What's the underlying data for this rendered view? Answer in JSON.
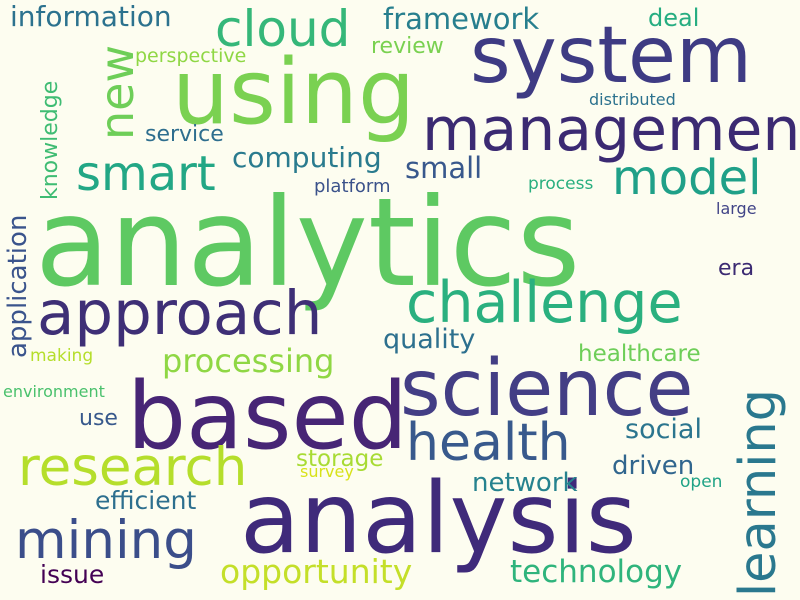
{
  "words": [
    {
      "text": "analytics",
      "color": "#5ec962"
    },
    {
      "text": "analysis",
      "color": "#3f2a7a"
    },
    {
      "text": "based",
      "color": "#472575"
    },
    {
      "text": "science",
      "color": "#433e85"
    },
    {
      "text": "system",
      "color": "#3e3b83"
    },
    {
      "text": "using",
      "color": "#7ad151"
    },
    {
      "text": "management",
      "color": "#3b2a72"
    },
    {
      "text": "approach",
      "color": "#3e2f76"
    },
    {
      "text": "challenge",
      "color": "#2ab07f"
    },
    {
      "text": "research",
      "color": "#b5de2b"
    },
    {
      "text": "mining",
      "color": "#3b4e8a"
    },
    {
      "text": "health",
      "color": "#38598c"
    },
    {
      "text": "cloud",
      "color": "#35b779"
    },
    {
      "text": "smart",
      "color": "#22a785"
    },
    {
      "text": "model",
      "color": "#1fa088"
    },
    {
      "text": "opportunity",
      "color": "#c4df29"
    },
    {
      "text": "technology",
      "color": "#2fb47c"
    },
    {
      "text": "learning",
      "color": "#2a788e"
    },
    {
      "text": "new",
      "color": "#6ece58"
    },
    {
      "text": "processing",
      "color": "#8fd744"
    },
    {
      "text": "framework",
      "color": "#277f8e"
    },
    {
      "text": "information",
      "color": "#2c728e"
    },
    {
      "text": "computing",
      "color": "#2a7b8e"
    },
    {
      "text": "small",
      "color": "#38588c"
    },
    {
      "text": "application",
      "color": "#3a548c"
    },
    {
      "text": "knowledge",
      "color": "#3fbc73"
    },
    {
      "text": "quality",
      "color": "#2d708e"
    },
    {
      "text": "social",
      "color": "#2b758e"
    },
    {
      "text": "driven",
      "color": "#31668e"
    },
    {
      "text": "network",
      "color": "#26828e"
    },
    {
      "text": "efficient",
      "color": "#2d6f8e"
    },
    {
      "text": "healthcare",
      "color": "#6ece58"
    },
    {
      "text": "storage",
      "color": "#a8db34"
    },
    {
      "text": "issue",
      "color": "#440154"
    },
    {
      "text": "review",
      "color": "#7ad151"
    },
    {
      "text": "service",
      "color": "#2e6e8e"
    },
    {
      "text": "perspective",
      "color": "#8fd744"
    },
    {
      "text": "deal",
      "color": "#26ad81"
    },
    {
      "text": "distributed",
      "color": "#2c728e"
    },
    {
      "text": "platform",
      "color": "#3b528b"
    },
    {
      "text": "process",
      "color": "#29af7f"
    },
    {
      "text": "large",
      "color": "#414487"
    },
    {
      "text": "era",
      "color": "#3b2a72"
    },
    {
      "text": "use",
      "color": "#38598c"
    },
    {
      "text": "making",
      "color": "#b5de2b"
    },
    {
      "text": "environment",
      "color": "#4ac16d"
    },
    {
      "text": "survey",
      "color": "#d8e219"
    },
    {
      "text": "open",
      "color": "#20a386"
    }
  ]
}
